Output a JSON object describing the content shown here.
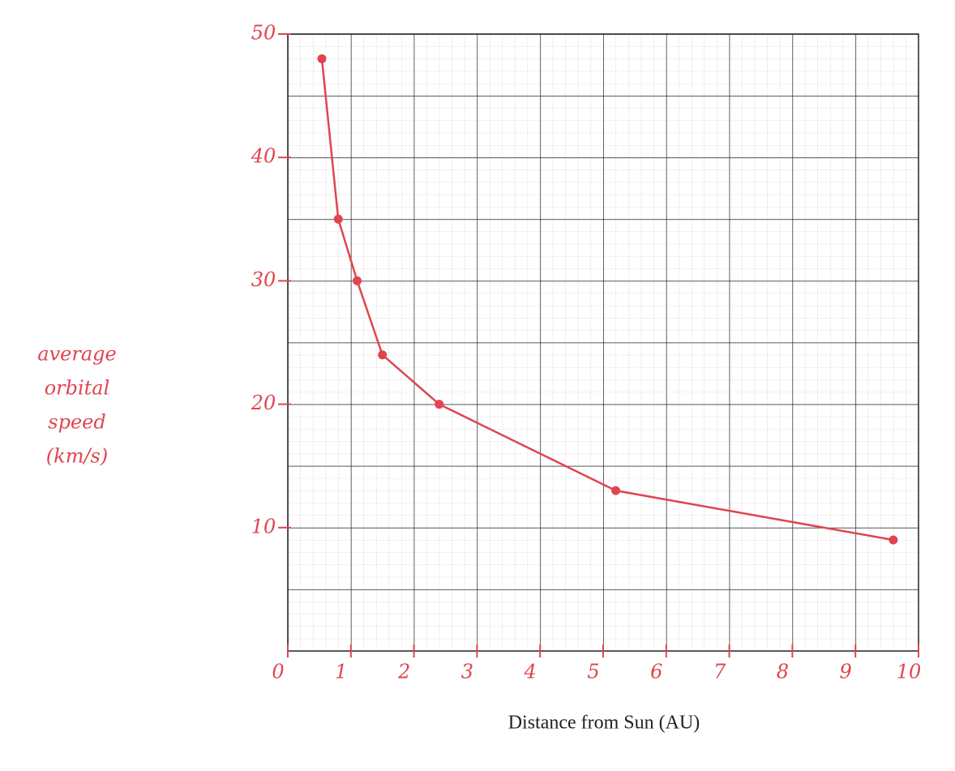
{
  "chart_data": {
    "type": "scatter",
    "x_label": "Distance from Sun (AU)",
    "y_label": [
      "average",
      "orbital",
      "speed",
      "(km/s)"
    ],
    "x": [
      0.54,
      0.8,
      1.1,
      1.5,
      2.4,
      5.2,
      9.6
    ],
    "series": [
      {
        "color": "#e0454f",
        "values": [
          48,
          35,
          30,
          24,
          20,
          13,
          9
        ]
      }
    ],
    "xlim": [
      0,
      10
    ],
    "xticks": [
      0,
      1,
      2,
      3,
      4,
      5,
      6,
      7,
      8,
      9,
      10
    ],
    "ylim": [
      0,
      50
    ],
    "yticks": [
      10,
      20,
      30,
      40,
      50
    ],
    "grid": true
  }
}
